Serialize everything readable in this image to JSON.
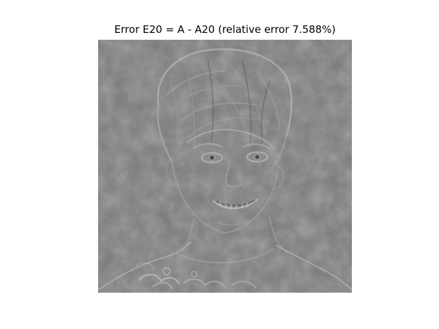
{
  "figure": {
    "title": "Error E20 = A - A20 (relative error 7.588%)"
  },
  "image": {
    "subject": "grayscale error residual image of a smiling child's face",
    "colormap": "gray",
    "background_color": "#7a7a7a",
    "edge_light_color": "#b0b0b0",
    "edge_dark_color": "#4a4a4a"
  }
}
